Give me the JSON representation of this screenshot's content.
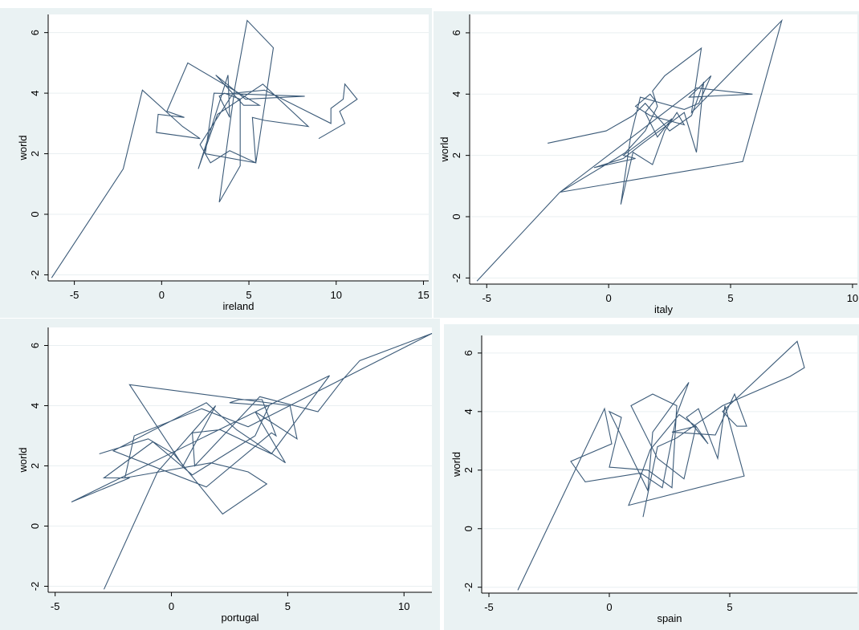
{
  "chart_data": [
    {
      "type": "line",
      "xlabel": "ireland",
      "ylabel": "world",
      "xlim": [
        -6.5,
        15.3
      ],
      "ylim": [
        -2.2,
        6.6
      ],
      "xticks": [
        -5,
        0,
        5,
        10,
        15
      ],
      "yticks": [
        -2,
        0,
        2,
        4,
        6
      ],
      "color": "#3b5a78",
      "x": [
        -6.3,
        -2.2,
        -1.1,
        1.2,
        2.2,
        -0.3,
        -0.2,
        1.3,
        0.3,
        1.5,
        5.6,
        4.7,
        3.1,
        4.8,
        8.2,
        3.0,
        2.5,
        5.4,
        6.4,
        4.9,
        4.2,
        3.3,
        4.5,
        4.5,
        3.6,
        3.3,
        3.9,
        3.8,
        2.1,
        3.2,
        5.8,
        8.4,
        5.9,
        5.2,
        5.4,
        3.9,
        2.8,
        2.2,
        4.1,
        5.9,
        9.7,
        9.7,
        10.4,
        10.5,
        11.2,
        10.2,
        10.5,
        9.0
      ],
      "y": [
        -2.1,
        1.5,
        4.1,
        2.9,
        2.5,
        2.7,
        3.3,
        3.2,
        3.4,
        5.0,
        3.6,
        3.6,
        4.6,
        3.8,
        3.9,
        4.0,
        2.0,
        1.7,
        5.5,
        6.4,
        4.2,
        0.4,
        1.6,
        3.8,
        4.0,
        3.9,
        3.2,
        4.6,
        1.5,
        3.3,
        4.3,
        2.9,
        3.1,
        3.2,
        1.7,
        2.1,
        1.7,
        2.3,
        4.0,
        4.1,
        3.0,
        3.5,
        3.8,
        4.3,
        3.8,
        3.4,
        3.0,
        2.5
      ]
    },
    {
      "type": "line",
      "xlabel": "italy",
      "ylabel": "world",
      "xlim": [
        -5.7,
        10.2
      ],
      "ylim": [
        -2.2,
        6.6
      ],
      "xticks": [
        -5,
        0,
        5,
        10
      ],
      "yticks": [
        -2,
        0,
        2,
        4,
        6
      ],
      "color": "#3b5a78",
      "x": [
        -5.4,
        -2.0,
        0.3,
        0.7,
        1.5,
        2.0,
        1.8,
        2.3,
        3.8,
        3.4,
        7.1,
        5.5,
        -2.0,
        3.6,
        5.9,
        3.3,
        4.2,
        3.7,
        3.1,
        1.3,
        0.9,
        0.7,
        0.5,
        1.0,
        1.8,
        2.3,
        2.8,
        3.1,
        1.7,
        1.1,
        1.7,
        1.9,
        1.5,
        2.0,
        2.6,
        0.6,
        1.1,
        -0.6,
        0.6,
        1.4,
        3.1,
        3.6,
        3.9,
        3.4,
        2.5,
        1.5,
        1.0,
        -0.1,
        -2.5
      ],
      "y": [
        -2.1,
        0.8,
        1.9,
        2.1,
        2.8,
        3.6,
        4.1,
        4.6,
        5.5,
        3.4,
        6.4,
        1.8,
        0.8,
        4.2,
        4.0,
        3.9,
        4.6,
        3.7,
        3.5,
        3.9,
        2.6,
        1.5,
        0.4,
        2.1,
        1.7,
        2.8,
        3.4,
        3.0,
        3.3,
        3.6,
        4.0,
        3.8,
        3.4,
        2.6,
        3.2,
        2.0,
        1.9,
        1.6,
        1.9,
        2.4,
        3.4,
        2.1,
        4.4,
        3.3,
        2.8,
        3.7,
        3.3,
        2.8,
        2.4
      ]
    },
    {
      "type": "line",
      "xlabel": "portugal",
      "ylabel": "world",
      "xlim": [
        -5.3,
        11.2
      ],
      "ylim": [
        -2.2,
        6.6
      ],
      "xticks": [
        -5,
        0,
        5,
        10
      ],
      "yticks": [
        -2,
        0,
        2,
        4,
        6
      ],
      "color": "#3b5a78",
      "x": [
        -2.9,
        -0.6,
        1.9,
        0.5,
        -1.8,
        5.1,
        5.4,
        3.6,
        4.9,
        2.8,
        1.5,
        -2.5,
        1.5,
        4.3,
        4.5,
        3.9,
        2.9,
        2.5,
        4.2,
        3.6,
        0.9,
        -0.8,
        -2.9,
        -1.8,
        -4.3,
        6.8,
        4.3,
        2.1,
        0.9,
        1.0,
        3.8,
        6.3,
        7.4,
        8.1,
        11.2,
        3.3,
        1.3,
        -1.6,
        -2.0,
        1.7,
        3.3,
        4.1,
        2.2,
        0.1,
        -1.0,
        -3.1
      ],
      "y": [
        -2.1,
        1.8,
        4.0,
        2.0,
        4.7,
        4.0,
        2.9,
        3.8,
        2.1,
        3.2,
        4.1,
        2.5,
        1.3,
        3.1,
        3.0,
        4.2,
        4.2,
        4.1,
        4.0,
        3.0,
        1.7,
        2.8,
        1.6,
        1.6,
        0.8,
        5.0,
        2.4,
        3.2,
        3.1,
        2.0,
        4.3,
        3.8,
        4.9,
        5.5,
        6.4,
        3.3,
        3.9,
        3.0,
        1.6,
        2.1,
        1.8,
        1.4,
        0.4,
        2.4,
        2.9,
        2.4
      ]
    },
    {
      "type": "line",
      "xlabel": "spain",
      "ylabel": "world",
      "xlim": [
        -5.3,
        10.3
      ],
      "ylim": [
        -2.2,
        6.6
      ],
      "xticks": [
        -5,
        0,
        5
      ],
      "yticks": [
        -2,
        0,
        2,
        4,
        6
      ],
      "color": "#3b5a78",
      "x": [
        -3.8,
        -0.2,
        0.1,
        -1.6,
        -1.0,
        1.3,
        2.2,
        2.8,
        3.3,
        1.8,
        1.6,
        0.0,
        0.5,
        0.0,
        1.6,
        2.6,
        2.8,
        1.8,
        0.9,
        2.0,
        3.1,
        3.6,
        2.9,
        1.7,
        1.3,
        0.8,
        5.6,
        4.8,
        4.5,
        3.7,
        3.2,
        4.1,
        3.6,
        2.6,
        4.4,
        5.2,
        5.7,
        5.3,
        4.7,
        7.8,
        8.1,
        7.5,
        4.7,
        2.8,
        2.0,
        1.4
      ],
      "y": [
        -2.1,
        4.1,
        2.9,
        2.3,
        1.6,
        1.9,
        1.4,
        3.9,
        5.0,
        3.3,
        1.3,
        4.0,
        3.8,
        2.1,
        2.0,
        1.4,
        4.2,
        4.6,
        4.2,
        2.4,
        1.7,
        3.5,
        3.9,
        2.7,
        1.8,
        0.8,
        1.8,
        4.2,
        2.4,
        4.1,
        3.8,
        2.9,
        3.5,
        3.3,
        3.2,
        4.6,
        3.5,
        3.5,
        4.0,
        6.4,
        5.5,
        5.2,
        4.2,
        3.1,
        2.8,
        0.4
      ]
    }
  ]
}
